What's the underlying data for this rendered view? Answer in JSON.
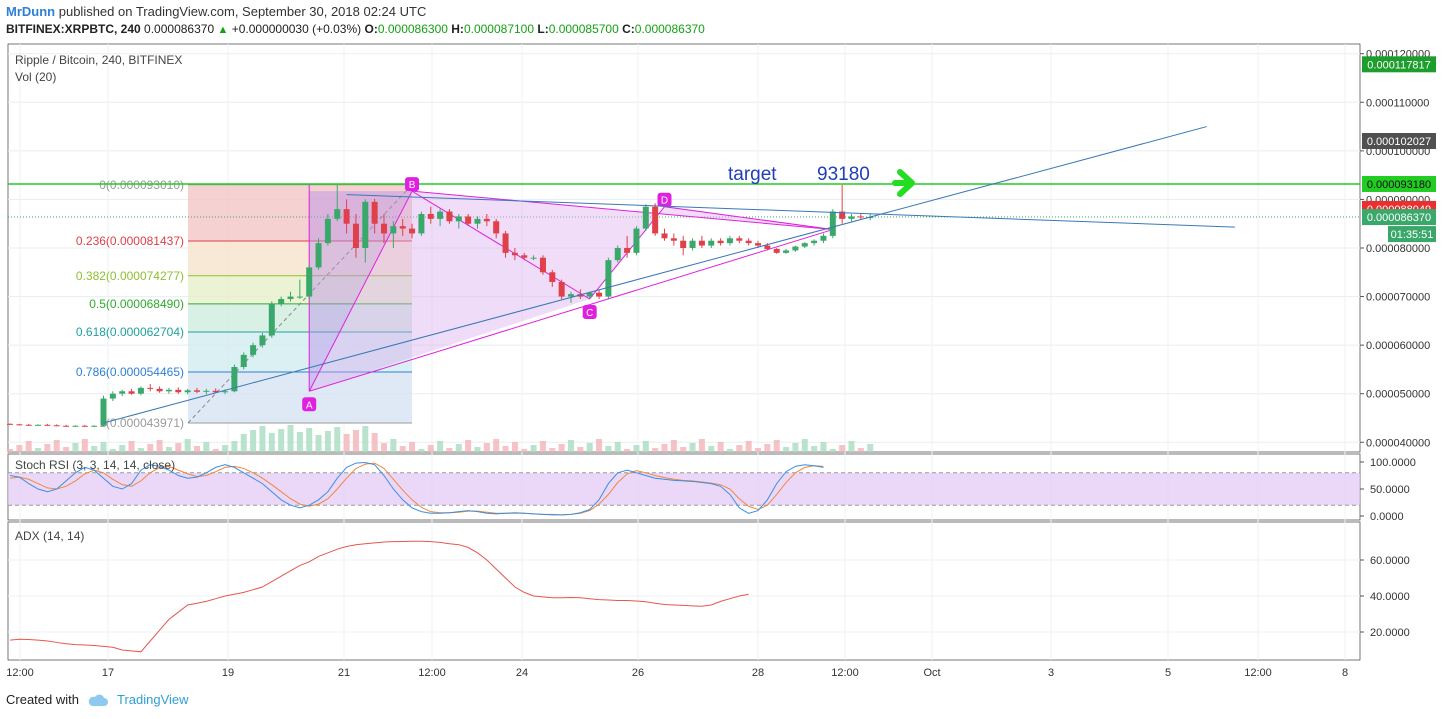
{
  "header": {
    "author": "MrDunn",
    "published_text": "published on TradingView.com, September 30, 2018 02:24 UTC",
    "symbol": "BITFINEX:XRPBTC, 240",
    "last": "0.000086370",
    "change": "+0.000000030 (+0.03%)",
    "o_label": "O:",
    "o": "0.000086300",
    "h_label": "H:",
    "h": "0.000087100",
    "l_label": "L:",
    "l": "0.000085700",
    "c_label": "C:",
    "c": "0.000086370"
  },
  "footer": {
    "created_with": "Created with",
    "brand": "TradingView"
  },
  "colors": {
    "up": "#3aa86b",
    "down": "#e0404a",
    "fib_line": "#4a90c8",
    "pattern": "#e020e0",
    "green_line": "#22cc22",
    "trend": "#3a78b8",
    "stoch_k": "#3b8fe0",
    "stoch_d": "#f0883c",
    "adx": "#e8564e"
  },
  "chart_data": {
    "type": "candlestick",
    "title": "Ripple / Bitcoin, 240, BITFINEX",
    "volume_label": "Vol (20)",
    "x_ticks": [
      "12:00",
      "17",
      "19",
      "21",
      "12:00",
      "24",
      "26",
      "28",
      "12:00",
      "Oct",
      "3",
      "5",
      "12:00",
      "8"
    ],
    "y_ticks": [
      "0.000120000",
      "0.000110000",
      "0.000100000",
      "0.000090000",
      "0.000080000",
      "0.000070000",
      "0.000060000",
      "0.000050000",
      "0.000040000"
    ],
    "ylim": [
      3.8e-05,
      0.000122
    ],
    "candles": [
      [
        4.38e-05,
        4.39e-05,
        4.36e-05,
        4.37e-05
      ],
      [
        4.37e-05,
        4.38e-05,
        4.35e-05,
        4.36e-05
      ],
      [
        4.36e-05,
        4.38e-05,
        4.34e-05,
        4.35e-05
      ],
      [
        4.35e-05,
        4.37e-05,
        4.34e-05,
        4.36e-05
      ],
      [
        4.36e-05,
        4.38e-05,
        4.34e-05,
        4.35e-05
      ],
      [
        4.35e-05,
        4.37e-05,
        4.33e-05,
        4.34e-05
      ],
      [
        4.34e-05,
        4.36e-05,
        4.32e-05,
        4.33e-05
      ],
      [
        4.33e-05,
        4.35e-05,
        4.32e-05,
        4.34e-05
      ],
      [
        4.34e-05,
        4.36e-05,
        4.32e-05,
        4.33e-05
      ],
      [
        4.33e-05,
        4.35e-05,
        4.32e-05,
        4.34e-05
      ],
      [
        4.34e-05,
        4.96e-05,
        4.33e-05,
        4.9e-05
      ],
      [
        4.9e-05,
        5.05e-05,
        4.85e-05,
        5e-05
      ],
      [
        5e-05,
        5.08e-05,
        4.95e-05,
        5.05e-05
      ],
      [
        5.05e-05,
        5.1e-05,
        4.98e-05,
        5e-05
      ],
      [
        5e-05,
        5.15e-05,
        4.97e-05,
        5.12e-05
      ],
      [
        5.12e-05,
        5.2e-05,
        5.05e-05,
        5.1e-05
      ],
      [
        5.1e-05,
        5.15e-05,
        5.02e-05,
        5.05e-05
      ],
      [
        5.05e-05,
        5.12e-05,
        5e-05,
        5.08e-05
      ],
      [
        5.08e-05,
        5.13e-05,
        5e-05,
        5.03e-05
      ],
      [
        5.03e-05,
        5.1e-05,
        4.99e-05,
        5.07e-05
      ],
      [
        5.07e-05,
        5.12e-05,
        5.01e-05,
        5.04e-05
      ],
      [
        5.04e-05,
        5.1e-05,
        4.99e-05,
        5.06e-05
      ],
      [
        5.06e-05,
        5.11e-05,
        5.01e-05,
        5.03e-05
      ],
      [
        5.03e-05,
        5.09e-05,
        4.99e-05,
        5.05e-05
      ],
      [
        5.05e-05,
        5.6e-05,
        5.03e-05,
        5.55e-05
      ],
      [
        5.55e-05,
        5.85e-05,
        5.5e-05,
        5.8e-05
      ],
      [
        5.8e-05,
        6.05e-05,
        5.75e-05,
        6e-05
      ],
      [
        6e-05,
        6.25e-05,
        5.95e-05,
        6.2e-05
      ],
      [
        6.2e-05,
        6.9e-05,
        6.15e-05,
        6.85e-05
      ],
      [
        6.85e-05,
        7e-05,
        6.8e-05,
        6.95e-05
      ],
      [
        6.95e-05,
        7.1e-05,
        6.9e-05,
        7e-05
      ],
      [
        7e-05,
        7.35e-05,
        6.95e-05,
        7e-05
      ],
      [
        7e-05,
        7.65e-05,
        6.95e-05,
        7.6e-05
      ],
      [
        7.6e-05,
        8.2e-05,
        7.55e-05,
        8.1e-05
      ],
      [
        8.1e-05,
        8.7e-05,
        8.05e-05,
        8.6e-05
      ],
      [
        8.6e-05,
        9.3e-05,
        8.55e-05,
        8.8e-05
      ],
      [
        8.8e-05,
        9e-05,
        8.3e-05,
        8.5e-05
      ],
      [
        8.5e-05,
        8.7e-05,
        7.8e-05,
        8e-05
      ],
      [
        8e-05,
        9e-05,
        7.7e-05,
        8.95e-05
      ],
      [
        8.95e-05,
        9.01e-05,
        8.3e-05,
        8.5e-05
      ],
      [
        8.5e-05,
        8.7e-05,
        8.1e-05,
        8.3e-05
      ],
      [
        8.3e-05,
        8.55e-05,
        8e-05,
        8.45e-05
      ],
      [
        8.45e-05,
        8.6e-05,
        8.25e-05,
        8.4e-05
      ],
      [
        8.4e-05,
        8.5e-05,
        8.2e-05,
        8.3e-05
      ],
      [
        8.3e-05,
        8.75e-05,
        8.25e-05,
        8.7e-05
      ],
      [
        8.7e-05,
        8.85e-05,
        8.5e-05,
        8.6e-05
      ],
      [
        8.6e-05,
        8.8e-05,
        8.45e-05,
        8.75e-05
      ],
      [
        8.75e-05,
        8.8e-05,
        8.5e-05,
        8.55e-05
      ],
      [
        8.55e-05,
        8.7e-05,
        8.4e-05,
        8.65e-05
      ],
      [
        8.65e-05,
        8.7e-05,
        8.45e-05,
        8.5e-05
      ],
      [
        8.5e-05,
        8.65e-05,
        8.4e-05,
        8.6e-05
      ],
      [
        8.6e-05,
        8.7e-05,
        8.45e-05,
        8.55e-05
      ],
      [
        8.55e-05,
        8.6e-05,
        8.2e-05,
        8.3e-05
      ],
      [
        8.3e-05,
        8.35e-05,
        7.8e-05,
        7.9e-05
      ],
      [
        7.9e-05,
        8e-05,
        7.75e-05,
        7.85e-05
      ],
      [
        7.85e-05,
        7.9e-05,
        7.75e-05,
        7.8e-05
      ],
      [
        7.8e-05,
        7.85e-05,
        7.75e-05,
        7.8e-05
      ],
      [
        7.8e-05,
        7.85e-05,
        7.45e-05,
        7.5e-05
      ],
      [
        7.5e-05,
        7.55e-05,
        7.2e-05,
        7.3e-05
      ],
      [
        7.3e-05,
        7.35e-05,
        6.95e-05,
        7e-05
      ],
      [
        7e-05,
        7.1e-05,
        6.87e-05,
        7.05e-05
      ],
      [
        7.05e-05,
        7.15e-05,
        6.95e-05,
        7e-05
      ],
      [
        7e-05,
        7.1e-05,
        6.95e-05,
        7.08e-05
      ],
      [
        7.08e-05,
        7.15e-05,
        6.95e-05,
        7e-05
      ],
      [
        7e-05,
        7.8e-05,
        6.95e-05,
        7.75e-05
      ],
      [
        7.75e-05,
        8.05e-05,
        7.7e-05,
        8e-05
      ],
      [
        8e-05,
        8.25e-05,
        7.8e-05,
        7.9e-05
      ],
      [
        7.9e-05,
        8.45e-05,
        7.85e-05,
        8.4e-05
      ],
      [
        8.4e-05,
        8.9e-05,
        8.35e-05,
        8.85e-05
      ],
      [
        8.85e-05,
        8.92e-05,
        8.25e-05,
        8.3e-05
      ],
      [
        8.3e-05,
        8.4e-05,
        8.15e-05,
        8.2e-05
      ],
      [
        8.2e-05,
        8.3e-05,
        8.05e-05,
        8.15e-05
      ],
      [
        8.15e-05,
        8.25e-05,
        7.85e-05,
        8e-05
      ],
      [
        8e-05,
        8.2e-05,
        7.95e-05,
        8.15e-05
      ],
      [
        8.15e-05,
        8.25e-05,
        8e-05,
        8.05e-05
      ],
      [
        8.05e-05,
        8.2e-05,
        8e-05,
        8.15e-05
      ],
      [
        8.15e-05,
        8.2e-05,
        8.05e-05,
        8.1e-05
      ],
      [
        8.1e-05,
        8.25e-05,
        8.05e-05,
        8.2e-05
      ],
      [
        8.2e-05,
        8.25e-05,
        8.1e-05,
        8.15e-05
      ],
      [
        8.15e-05,
        8.2e-05,
        8.05e-05,
        8.1e-05
      ],
      [
        8.1e-05,
        8.15e-05,
        8e-05,
        8.05e-05
      ],
      [
        8.05e-05,
        8.1e-05,
        7.95e-05,
        7.98e-05
      ],
      [
        7.98e-05,
        8e-05,
        7.88e-05,
        7.9e-05
      ],
      [
        7.9e-05,
        7.98e-05,
        7.88e-05,
        7.95e-05
      ],
      [
        7.95e-05,
        8.05e-05,
        7.92e-05,
        8.03e-05
      ],
      [
        8.03e-05,
        8.12e-05,
        8e-05,
        8.1e-05
      ],
      [
        8.1e-05,
        8.18e-05,
        8.05e-05,
        8.15e-05
      ],
      [
        8.15e-05,
        8.3e-05,
        8.1e-05,
        8.25e-05
      ],
      [
        8.25e-05,
        8.8e-05,
        8.2e-05,
        8.75e-05
      ],
      [
        8.75e-05,
        9.3e-05,
        8.5e-05,
        8.6e-05
      ],
      [
        8.6e-05,
        8.7e-05,
        8.55e-05,
        8.65e-05
      ],
      [
        8.65e-05,
        8.7e-05,
        8.58e-05,
        8.63e-05
      ],
      [
        8.63e-05,
        8.71e-05,
        8.57e-05,
        8.637e-05
      ]
    ],
    "fib_levels": [
      {
        "label": "0(0.000093010)",
        "value": 9.301e-05,
        "color": "#9a9a9a"
      },
      {
        "label": "0.236(0.000081437)",
        "value": 8.1437e-05,
        "color": "#e0404a"
      },
      {
        "label": "0.382(0.000074277)",
        "value": 7.4277e-05,
        "color": "#8fbf2f"
      },
      {
        "label": "0.5(0.000068490)",
        "value": 6.849e-05,
        "color": "#2eaa2e"
      },
      {
        "label": "0.618(0.000062704)",
        "value": 6.2704e-05,
        "color": "#20a0a0"
      },
      {
        "label": "0.786(0.000054465)",
        "value": 5.4465e-05,
        "color": "#2e7fd6"
      },
      {
        "label": "1(0.000043971)",
        "value": 4.3971e-05,
        "color": "#9a9a9a"
      }
    ],
    "pattern_labels": [
      "A",
      "B",
      "C",
      "D"
    ],
    "target_text": "target",
    "target_value": "93180",
    "price_labels": [
      {
        "text": "0.000117817",
        "bg": "#1c9e2c",
        "fg": "#ffffff",
        "value": 0.000117817
      },
      {
        "text": "0.000102027",
        "bg": "#505050",
        "fg": "#ffffff",
        "value": 0.000102027
      },
      {
        "text": "0.000093180",
        "bg": "#22cc22",
        "fg": "#111111",
        "value": 9.318e-05
      },
      {
        "text": "0.000088049",
        "bg": "#e83030",
        "fg": "#ffffff",
        "value": 8.8049e-05
      },
      {
        "text": "0.000086370",
        "bg": "#3aa86b",
        "fg": "#ffffff",
        "value": 8.637e-05
      }
    ],
    "countdown": "01:35:51",
    "stoch": {
      "label": "Stoch RSI (3, 3, 14, 14, close)",
      "y_ticks": [
        "100.0000",
        "50.0000",
        "0.0000"
      ],
      "k": [
        75,
        72,
        60,
        50,
        45,
        50,
        65,
        80,
        90,
        85,
        70,
        55,
        50,
        60,
        85,
        95,
        92,
        85,
        75,
        70,
        72,
        80,
        90,
        95,
        90,
        80,
        70,
        60,
        45,
        30,
        20,
        15,
        20,
        30,
        45,
        70,
        90,
        98,
        99,
        95,
        75,
        50,
        30,
        15,
        8,
        5,
        5,
        6,
        8,
        10,
        8,
        5,
        4,
        5,
        6,
        5,
        4,
        3,
        2,
        2,
        3,
        6,
        12,
        30,
        60,
        80,
        85,
        80,
        75,
        70,
        68,
        66,
        65,
        64,
        62,
        60,
        55,
        40,
        15,
        5,
        10,
        30,
        60,
        82,
        92,
        95,
        93,
        90
      ],
      "d": [
        70,
        72,
        68,
        60,
        52,
        50,
        55,
        65,
        78,
        85,
        80,
        68,
        58,
        55,
        65,
        80,
        90,
        92,
        85,
        78,
        73,
        75,
        82,
        90,
        92,
        88,
        80,
        70,
        58,
        45,
        32,
        22,
        18,
        22,
        32,
        50,
        70,
        88,
        96,
        98,
        88,
        68,
        48,
        30,
        16,
        8,
        6,
        6,
        7,
        9,
        9,
        7,
        5,
        5,
        5,
        5,
        4,
        3,
        3,
        2,
        3,
        5,
        10,
        22,
        40,
        62,
        78,
        84,
        80,
        75,
        71,
        68,
        66,
        65,
        63,
        61,
        58,
        50,
        32,
        18,
        12,
        20,
        40,
        62,
        80,
        90,
        93,
        92
      ]
    },
    "adx": {
      "label": "ADX (14, 14)",
      "y_ticks": [
        "60.0000",
        "40.0000",
        "20.0000"
      ],
      "values": [
        15.5,
        16,
        15.8,
        15.5,
        15,
        14.2,
        13.5,
        13,
        12.8,
        12.5,
        12,
        11.5,
        10,
        9.5,
        9,
        15,
        21,
        27,
        31,
        35,
        36,
        37,
        38.5,
        40,
        41,
        42,
        43.5,
        45,
        48,
        51,
        54,
        57,
        59,
        62,
        64,
        66,
        67.5,
        68.5,
        69,
        69.5,
        70,
        70.2,
        70.3,
        70.4,
        70.4,
        70.2,
        69.8,
        69,
        68.5,
        67,
        64,
        60,
        55,
        50,
        45,
        42,
        40,
        39.5,
        39,
        39,
        39.2,
        39,
        38.5,
        38,
        37.8,
        37.5,
        37.5,
        37.2,
        36.8,
        36,
        35.3,
        35,
        34.8,
        34.5,
        34.3,
        35,
        37,
        38.5,
        40,
        41
      ]
    },
    "trend_lines": [
      {
        "name": "rising",
        "from": [
          10,
          4.3971e-05
        ],
        "to": [
          128,
          0.000105
        ]
      },
      {
        "name": "falling",
        "from": [
          36,
          9.1e-05
        ],
        "to": [
          131,
          8.43e-05
        ]
      }
    ]
  }
}
